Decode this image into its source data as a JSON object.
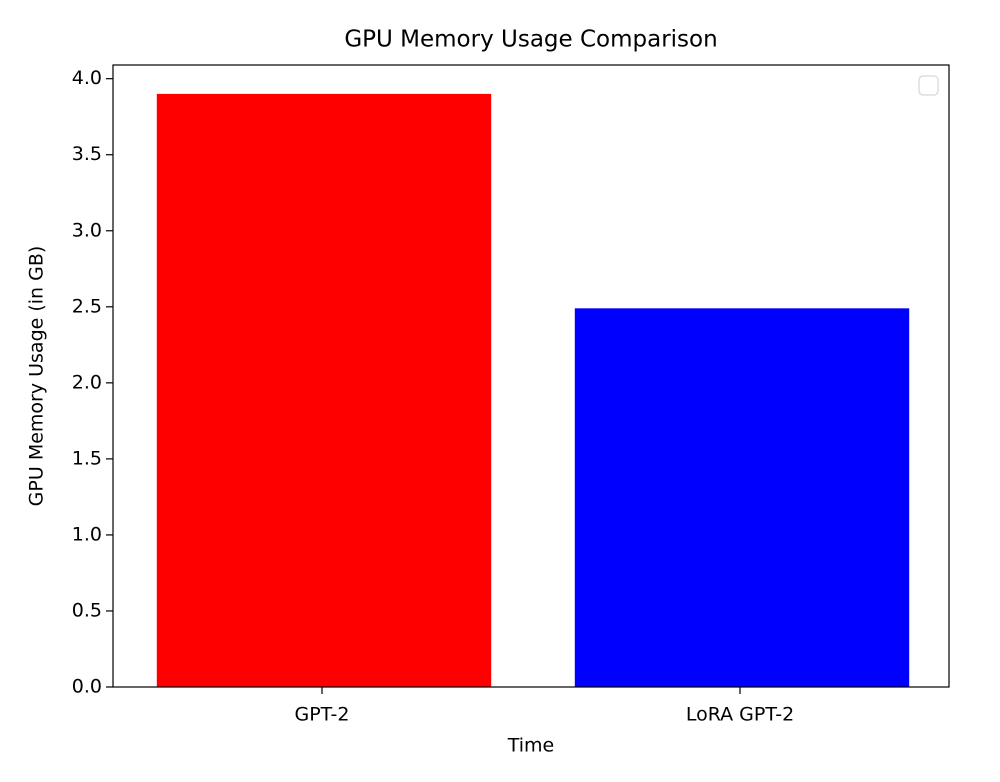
{
  "chart_data": {
    "type": "bar",
    "title": "GPU Memory Usage Comparison",
    "x_label": "Time",
    "y_label": "GPU Memory Usage (in GB)",
    "categories": [
      "GPT-2",
      "LoRA GPT-2"
    ],
    "values": [
      3.9,
      2.49
    ],
    "colors": [
      "#ff0000",
      "#0000ff"
    ],
    "ylim": [
      0,
      4.09
    ],
    "yticks": [
      {
        "value": 0,
        "label": "0.0"
      },
      0.5,
      {
        "value": 1,
        "label": "1.0"
      },
      1.5,
      {
        "value": 2,
        "label": "2.0"
      },
      2.5,
      {
        "value": 3,
        "label": "3.0"
      },
      3.5,
      {
        "value": 4,
        "label": "4.0"
      }
    ],
    "legend": "upper right"
  }
}
